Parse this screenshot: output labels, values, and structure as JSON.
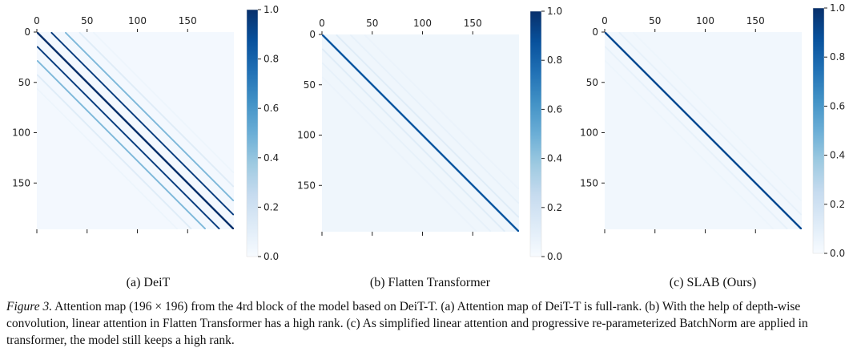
{
  "chart_data": [
    {
      "type": "heatmap",
      "panel_caption": "(a) DeiT",
      "size": 196,
      "x_ticks": [
        0,
        50,
        100,
        150
      ],
      "y_ticks": [
        0,
        50,
        100,
        150
      ],
      "x_tick_labels": [
        "0",
        "50",
        "100",
        "150"
      ],
      "y_tick_labels": [
        "0",
        "50",
        "100",
        "150"
      ],
      "colorbar": {
        "min": 0.0,
        "max": 1.0,
        "ticks": [
          "0.0",
          "0.2",
          "0.4",
          "0.6",
          "0.8",
          "1.0"
        ],
        "colormap": "Blues"
      },
      "bands": [
        {
          "offset": 0,
          "value": 1.0
        },
        {
          "offset": 14,
          "value": 0.95
        },
        {
          "offset": -14,
          "value": 0.95
        },
        {
          "offset": 28,
          "value": 0.45
        },
        {
          "offset": -28,
          "value": 0.45
        },
        {
          "offset": 42,
          "value": 0.12
        },
        {
          "offset": -42,
          "value": 0.12
        },
        {
          "offset": 56,
          "value": 0.05
        },
        {
          "offset": -56,
          "value": 0.05
        }
      ],
      "background": 0.02
    },
    {
      "type": "heatmap",
      "panel_caption": "(b) Flatten Transformer",
      "size": 196,
      "x_ticks": [
        0,
        50,
        100,
        150
      ],
      "y_ticks": [
        0,
        50,
        100,
        150
      ],
      "x_tick_labels": [
        "0",
        "50",
        "100",
        "150"
      ],
      "y_tick_labels": [
        "0",
        "50",
        "100",
        "150"
      ],
      "colorbar": {
        "min": 0.0,
        "max": 1.0,
        "ticks": [
          "0.0",
          "0.2",
          "0.4",
          "0.6",
          "0.8",
          "1.0"
        ],
        "colormap": "Blues"
      },
      "bands": [
        {
          "offset": 0,
          "value": 0.85
        },
        {
          "offset": 14,
          "value": 0.12
        },
        {
          "offset": -14,
          "value": 0.12
        },
        {
          "offset": 28,
          "value": 0.08
        },
        {
          "offset": -28,
          "value": 0.08
        },
        {
          "offset": 42,
          "value": 0.06
        },
        {
          "offset": -42,
          "value": 0.06
        }
      ],
      "background": 0.04
    },
    {
      "type": "heatmap",
      "panel_caption": "(c) SLAB (Ours)",
      "size": 196,
      "x_ticks": [
        0,
        50,
        100,
        150
      ],
      "y_ticks": [
        0,
        50,
        100,
        150
      ],
      "x_tick_labels": [
        "0",
        "50",
        "100",
        "150"
      ],
      "y_tick_labels": [
        "0",
        "50",
        "100",
        "150"
      ],
      "colorbar": {
        "min": 0.0,
        "max": 1.0,
        "ticks": [
          "0.0",
          "0.2",
          "0.4",
          "0.6",
          "0.8",
          "1.0"
        ],
        "colormap": "Blues"
      },
      "bands": [
        {
          "offset": 0,
          "value": 0.9
        },
        {
          "offset": 14,
          "value": 0.08
        },
        {
          "offset": -14,
          "value": 0.08
        },
        {
          "offset": 28,
          "value": 0.05
        },
        {
          "offset": -28,
          "value": 0.05
        }
      ],
      "background": 0.03
    }
  ],
  "caption": {
    "label": "Figure 3.",
    "text": " Attention map (196 × 196) from the 4rd block of the model based on DeiT-T. (a) Attention map of DeiT-T is full-rank. (b) With the help of depth-wise convolution, linear attention in Flatten Transformer has a high rank. (c) As simplified linear attention and progressive re-parameterized BatchNorm are applied in transformer, the model still keeps a high rank."
  }
}
